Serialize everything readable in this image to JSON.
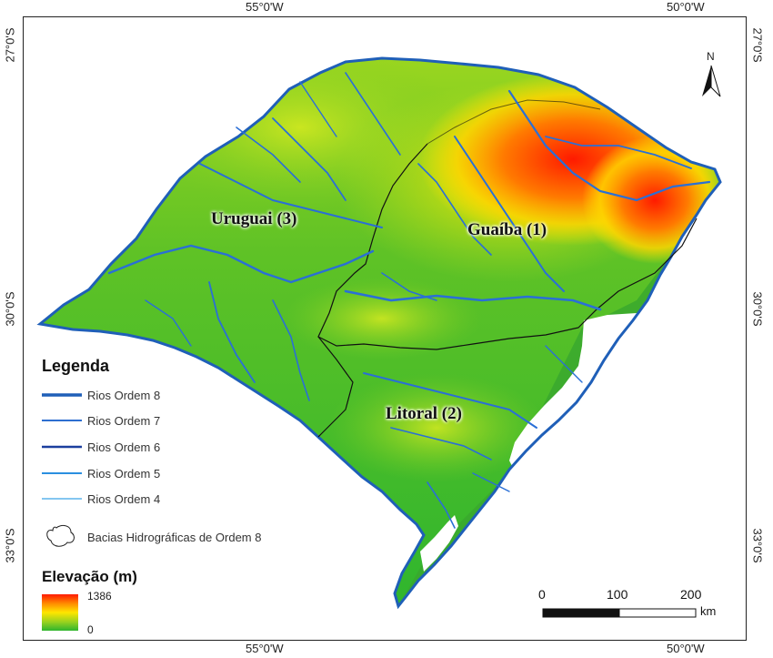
{
  "graticule": {
    "top_left": "55°0'W",
    "top_right": "50°0'W",
    "bottom_left": "55°0'W",
    "bottom_right": "50°0'W",
    "left_top": "27°0'S",
    "left_mid": "30°0'S",
    "left_bottom": "33°0'S",
    "right_top": "27°0'S",
    "right_mid": "30°0'S",
    "right_bottom": "33°0'S"
  },
  "north_arrow": {
    "label": "N",
    "icon": "north-arrow-icon"
  },
  "basins": [
    {
      "label": "Guaíba (1)"
    },
    {
      "label": "Litoral (2)"
    },
    {
      "label": "Uruguai (3)"
    }
  ],
  "legend": {
    "title": "Legenda",
    "items": [
      {
        "label": "Rios Ordem 8",
        "color": "#1f5fb8"
      },
      {
        "label": "Rios Ordem 7",
        "color": "#2e6fd0"
      },
      {
        "label": "Rios Ordem 6",
        "color": "#1c3f9e"
      },
      {
        "label": "Rios Ordem 5",
        "color": "#2b8fe0"
      },
      {
        "label": "Rios Ordem 4",
        "color": "#3aa3e8"
      }
    ],
    "basin_label": "Bacias Hidrográficas de Ordem 8",
    "elevation_title": "Elevação (m)",
    "elevation_max": "1386",
    "elevation_min": "0"
  },
  "scale_bar": {
    "labels": [
      "0",
      "100",
      "200"
    ],
    "unit": "km"
  },
  "colors": {
    "low": "#2eb52e",
    "mid": "#ffe600",
    "high": "#ff1a00",
    "water": "#ffffff",
    "rivers": "#2a6fd6"
  }
}
